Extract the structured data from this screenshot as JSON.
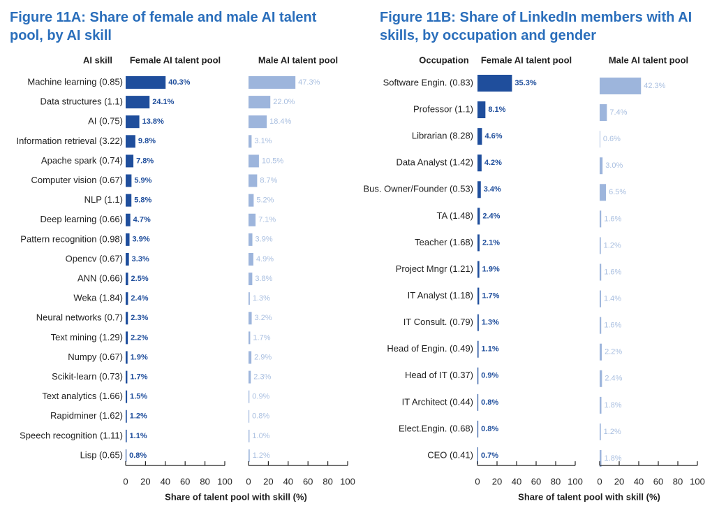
{
  "chart_data": [
    {
      "type": "bar",
      "orientation": "horizontal",
      "title": "Figure 11A: Share of female and male AI talent pool, by AI skill",
      "category_label": "AI skill",
      "x_label": "Share of talent pool with skill (%)",
      "categories": [
        "Machine learning (0.85)",
        "Data structures (1.1)",
        "AI (0.75)",
        "Information retrieval (3.22)",
        "Apache spark (0.74)",
        "Computer vision (0.67)",
        "NLP (1.1)",
        "Deep learning (0.66)",
        "Pattern recognition (0.98)",
        "Opencv (0.67)",
        "ANN (0.66)",
        "Weka (1.84)",
        "Neural networks (0.7)",
        "Text mining (1.29)",
        "Numpy (0.67)",
        "Scikit-learn (0.73)",
        "Text analytics (1.66)",
        "Rapidminer (1.62)",
        "Speech recognition (1.11)",
        "Lisp (0.65)"
      ],
      "series": [
        {
          "name": "Female AI talent pool",
          "color": "#1f4e9c",
          "values": [
            40.3,
            24.1,
            13.8,
            9.8,
            7.8,
            5.9,
            5.8,
            4.7,
            3.9,
            3.3,
            2.5,
            2.4,
            2.3,
            2.2,
            1.9,
            1.7,
            1.5,
            1.2,
            1.1,
            0.8
          ],
          "value_labels": [
            "40.3%",
            "24.1%",
            "13.8%",
            "9.8%",
            "7.8%",
            "5.9%",
            "5.8%",
            "4.7%",
            "3.9%",
            "3.3%",
            "2.5%",
            "2.4%",
            "2.3%",
            "2.2%",
            "1.9%",
            "1.7%",
            "1.5%",
            "1.2%",
            "1.1%",
            "0.8%"
          ]
        },
        {
          "name": "Male AI talent pool",
          "color": "#9db5dc",
          "values": [
            47.3,
            22.0,
            18.4,
            3.1,
            10.5,
            8.7,
            5.2,
            7.1,
            3.9,
            4.9,
            3.8,
            1.3,
            3.2,
            1.7,
            2.9,
            2.3,
            0.9,
            0.8,
            1.0,
            1.2
          ],
          "value_labels": [
            "47.3%",
            "22.0%",
            "18.4%",
            "3.1%",
            "10.5%",
            "8.7%",
            "5.2%",
            "7.1%",
            "3.9%",
            "4.9%",
            "3.8%",
            "1.3%",
            "3.2%",
            "1.7%",
            "2.9%",
            "2.3%",
            "0.9%",
            "0.8%",
            "1.0%",
            "1.2%"
          ]
        }
      ],
      "xlim": [
        0,
        100
      ],
      "xticks": [
        0,
        20,
        40,
        60,
        80,
        100
      ]
    },
    {
      "type": "bar",
      "orientation": "horizontal",
      "title": "Figure 11B: Share of LinkedIn members with AI skills, by occupation and gender",
      "category_label": "Occupation",
      "x_label": "Share of talent pool with skill (%)",
      "categories": [
        "Software Engin. (0.83)",
        "Professor (1.1)",
        "Librarian (8.28)",
        "Data Analyst (1.42)",
        "Bus. Owner/Founder (0.53)",
        "TA (1.48)",
        "Teacher (1.68)",
        "Project Mngr (1.21)",
        "IT Analyst (1.18)",
        "IT Consult. (0.79)",
        "Head of Engin. (0.49)",
        "Head of IT (0.37)",
        "IT Architect (0.44)",
        "Elect.Engin. (0.68)",
        "CEO (0.41)"
      ],
      "series": [
        {
          "name": "Female AI talent pool",
          "color": "#1f4e9c",
          "values": [
            35.3,
            8.1,
            4.6,
            4.2,
            3.4,
            2.4,
            2.1,
            1.9,
            1.7,
            1.3,
            1.1,
            0.9,
            0.8,
            0.8,
            0.7
          ],
          "value_labels": [
            "35.3%",
            "8.1%",
            "4.6%",
            "4.2%",
            "3.4%",
            "2.4%",
            "2.1%",
            "1.9%",
            "1.7%",
            "1.3%",
            "1.1%",
            "0.9%",
            "0.8%",
            "0.8%",
            "0.7%"
          ]
        },
        {
          "name": "Male AI talent pool",
          "color": "#9db5dc",
          "values": [
            42.3,
            7.4,
            0.6,
            3.0,
            6.5,
            1.6,
            1.2,
            1.6,
            1.4,
            1.6,
            2.2,
            2.4,
            1.8,
            1.2,
            1.8
          ],
          "value_labels": [
            "42.3%",
            "7.4%",
            "0.6%",
            "3.0%",
            "6.5%",
            "1.6%",
            "1.2%",
            "1.6%",
            "1.4%",
            "1.6%",
            "2.2%",
            "2.4%",
            "1.8%",
            "1.2%",
            "1.8%"
          ]
        }
      ],
      "xlim": [
        0,
        100
      ],
      "xticks": [
        0,
        20,
        40,
        60,
        80,
        100
      ]
    }
  ]
}
